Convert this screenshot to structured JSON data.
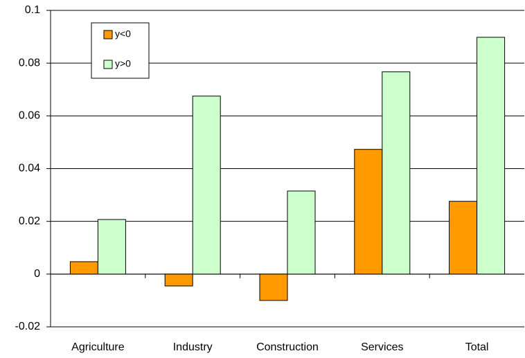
{
  "chart_data": {
    "type": "bar",
    "categories": [
      "Agriculture",
      "Industry",
      "Construction",
      "Services",
      "Total"
    ],
    "series": [
      {
        "name": "y<0",
        "color": "#ff9900",
        "values": [
          0.0047,
          -0.0045,
          -0.01,
          0.0473,
          0.0276
        ]
      },
      {
        "name": "y>0",
        "color": "#ccffcc",
        "values": [
          0.0207,
          0.0675,
          0.0315,
          0.0767,
          0.0898
        ]
      }
    ],
    "ylim": [
      -0.02,
      0.1
    ],
    "yticks": [
      -0.02,
      0,
      0.02,
      0.04,
      0.06,
      0.08,
      0.1
    ],
    "grid": true,
    "legend": "upper-left"
  }
}
